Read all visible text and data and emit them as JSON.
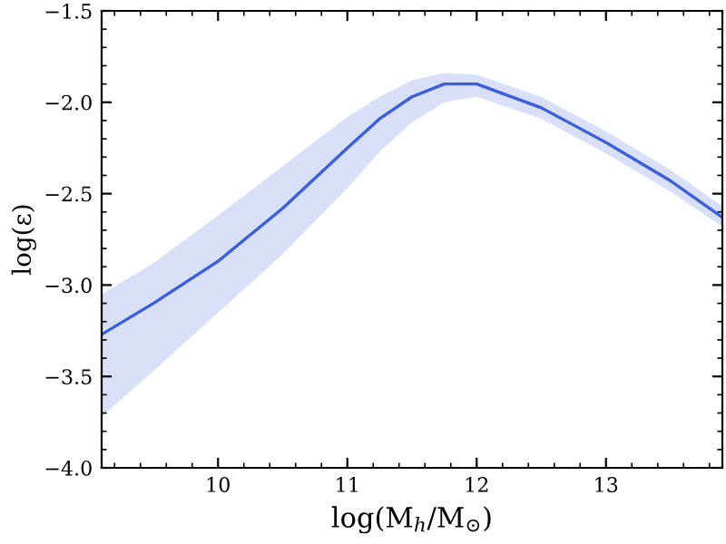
{
  "chart_data": {
    "type": "line",
    "xlabel": "log(M$_{h}$/M$_{⊙}$)",
    "ylabel": "log(ε)",
    "x": [
      9.1,
      9.5,
      10,
      10.5,
      11,
      11.25,
      11.5,
      11.75,
      12,
      12.5,
      13,
      13.5,
      13.9
    ],
    "series": [
      {
        "color": "#3a5fd8",
        "values": [
          -3.27,
          -3.1,
          -2.87,
          -2.58,
          -2.25,
          -2.09,
          -1.97,
          -1.9,
          -1.9,
          -2.03,
          -2.22,
          -2.43,
          -2.63
        ],
        "upper": [
          -3.05,
          -2.88,
          -2.62,
          -2.35,
          -2.08,
          -1.97,
          -1.88,
          -1.84,
          -1.85,
          -1.97,
          -2.16,
          -2.37,
          -2.57
        ],
        "lower": [
          -3.72,
          -3.47,
          -3.15,
          -2.83,
          -2.47,
          -2.27,
          -2.11,
          -2.0,
          -1.97,
          -2.09,
          -2.28,
          -2.49,
          -2.68
        ]
      }
    ],
    "xlim": [
      9.1,
      13.9
    ],
    "xticks": [
      10,
      11,
      12,
      13
    ],
    "ylim": [
      -4.0,
      -1.5
    ],
    "yticks": [
      {
        "value": -4.0,
        "label": "−4.0"
      },
      {
        "value": -3.5,
        "label": "−3.5"
      },
      {
        "value": -3.0,
        "label": "−3.0"
      },
      {
        "value": -2.5,
        "label": "−2.5"
      },
      {
        "value": -2.0,
        "label": "−2.0"
      },
      {
        "value": -1.5,
        "label": "−1.5"
      }
    ],
    "grid": false,
    "legend": false,
    "marker": "none",
    "line_style": "solid"
  }
}
